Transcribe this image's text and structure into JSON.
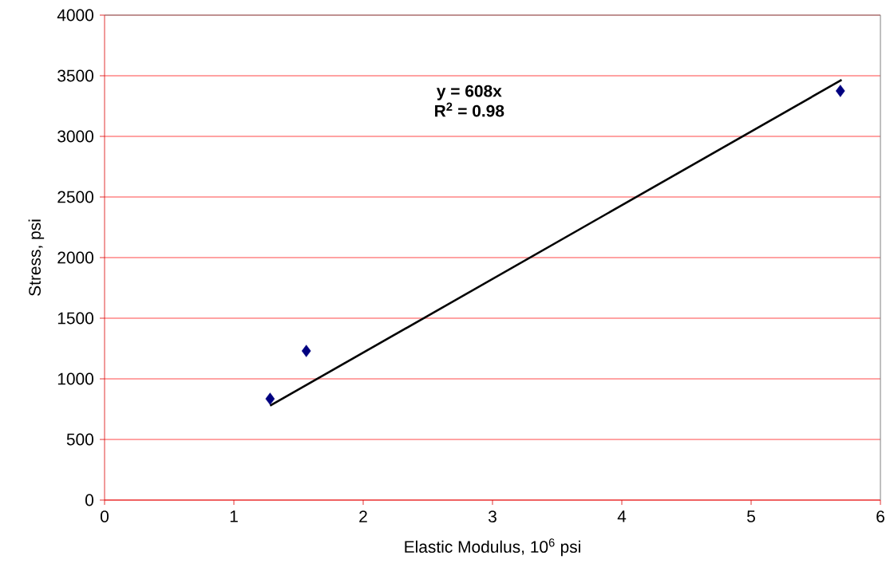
{
  "chart_data": {
    "type": "scatter",
    "xlabel": "Elastic Modulus, 10$^{6}$ psi",
    "ylabel": "Stress, psi",
    "xlim": [
      0,
      6
    ],
    "ylim": [
      0,
      4000
    ],
    "xticks": [
      0,
      1,
      2,
      3,
      4,
      5,
      6
    ],
    "yticks": [
      0,
      500,
      1000,
      1500,
      2000,
      2500,
      3000,
      3500,
      4000
    ],
    "grid": "y",
    "series": [
      {
        "color": "#000080",
        "marker": "diamond",
        "x": [
          1.28,
          1.56,
          5.69
        ],
        "values": [
          835,
          1230,
          3375
        ]
      },
      {
        "type": "line",
        "color": "#000000",
        "marker": "none",
        "line_style": "solid",
        "x": [
          1.28,
          5.7
        ],
        "values": [
          778,
          3466
        ]
      }
    ],
    "annotations": [
      "y = 608x",
      "R$^{2}$ = 0.98"
    ]
  }
}
